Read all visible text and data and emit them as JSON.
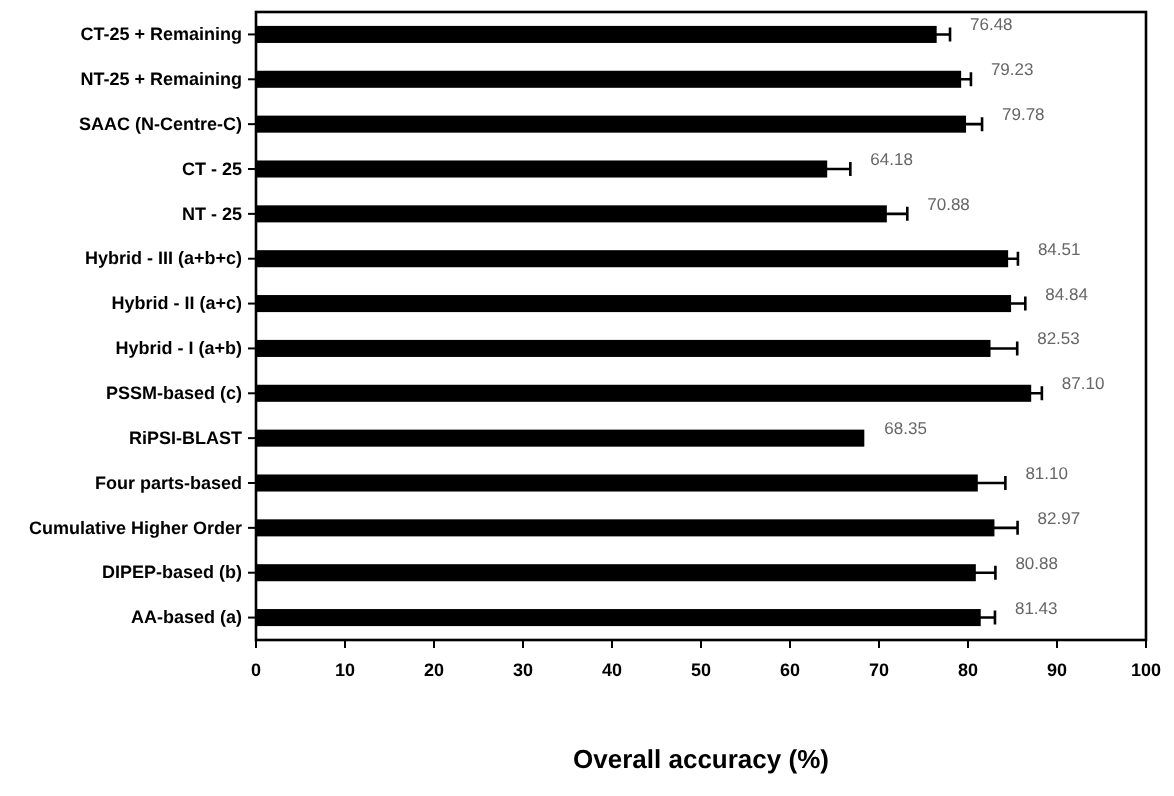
{
  "chart_data": {
    "type": "bar",
    "orientation": "horizontal",
    "xlabel": "Overall accuracy (%)",
    "categories": [
      "CT-25 + Remaining",
      "NT-25 + Remaining",
      "SAAC (N-Centre-C)",
      "CT - 25",
      "NT - 25",
      "Hybrid - III (a+b+c)",
      "Hybrid - II (a+c)",
      "Hybrid - I (a+b)",
      "PSSM-based (c)",
      "RiPSI-BLAST",
      "Four parts-based",
      "Cumulative Higher Order",
      "DIPEP-based (b)",
      "AA-based (a)"
    ],
    "values": [
      76.48,
      79.23,
      79.78,
      64.18,
      70.88,
      84.51,
      84.84,
      82.53,
      87.1,
      68.35,
      81.1,
      82.97,
      80.88,
      81.43
    ],
    "value_labels": [
      "76.48",
      "79.23",
      "79.78",
      "64.18",
      "70.88",
      "84.51",
      "84.84",
      "82.53",
      "87.10",
      "68.35",
      "81.10",
      "82.97",
      "80.88",
      "81.43"
    ],
    "errors": [
      1.5,
      1.1,
      1.8,
      2.6,
      2.3,
      1.1,
      1.6,
      3.0,
      1.2,
      null,
      3.1,
      2.6,
      2.2,
      1.6
    ],
    "color": "#000000",
    "xlim": [
      0,
      100
    ],
    "xticks": [
      0,
      10,
      20,
      30,
      40,
      50,
      60,
      70,
      80,
      90,
      100
    ],
    "grid": false
  }
}
